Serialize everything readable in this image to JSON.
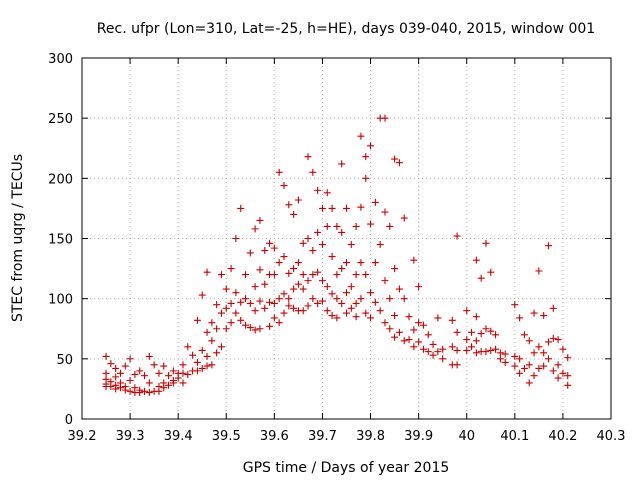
{
  "chart_data": {
    "type": "scatter",
    "title": "Rec. ufpr (Lon=310, Lat=-25, h=HE), days 039-040, 2015, window 001",
    "xlabel": "GPS time / Days of year 2015",
    "ylabel": "STEC from uqrg / TECUs",
    "xlim": [
      39.2,
      40.3
    ],
    "ylim": [
      0,
      300
    ],
    "xticks": [
      39.2,
      39.3,
      39.4,
      39.5,
      39.6,
      39.7,
      39.8,
      39.9,
      40.0,
      40.1,
      40.2,
      40.3
    ],
    "xtick_labels": [
      "39.2",
      "39.3",
      "39.4",
      "39.5",
      "39.6",
      "39.7",
      "39.8",
      "39.9",
      "40",
      "40.1",
      "40.2",
      "40.3"
    ],
    "yticks": [
      0,
      50,
      100,
      150,
      200,
      250,
      300
    ],
    "ytick_labels": [
      "0",
      "50",
      "100",
      "150",
      "200",
      "250",
      "300"
    ],
    "grid": true,
    "marker": "+",
    "color": "#cc0000",
    "series": [
      {
        "name": "STEC",
        "points": [
          [
            39.25,
            52
          ],
          [
            39.25,
            38
          ],
          [
            39.25,
            33
          ],
          [
            39.25,
            29
          ],
          [
            39.25,
            27
          ],
          [
            39.26,
            46
          ],
          [
            39.26,
            31
          ],
          [
            39.26,
            27
          ],
          [
            39.27,
            42
          ],
          [
            39.27,
            35
          ],
          [
            39.27,
            28
          ],
          [
            39.27,
            25
          ],
          [
            39.28,
            38
          ],
          [
            39.28,
            30
          ],
          [
            39.28,
            26
          ],
          [
            39.29,
            44
          ],
          [
            39.29,
            27
          ],
          [
            39.29,
            24
          ],
          [
            39.3,
            50
          ],
          [
            39.3,
            32
          ],
          [
            39.3,
            23
          ],
          [
            39.31,
            37
          ],
          [
            39.31,
            26
          ],
          [
            39.31,
            22
          ],
          [
            39.32,
            40
          ],
          [
            39.32,
            24
          ],
          [
            39.32,
            22
          ],
          [
            39.33,
            36
          ],
          [
            39.33,
            23
          ],
          [
            39.34,
            52
          ],
          [
            39.34,
            30
          ],
          [
            39.34,
            22
          ],
          [
            39.35,
            45
          ],
          [
            39.35,
            23
          ],
          [
            39.36,
            38
          ],
          [
            39.36,
            27
          ],
          [
            39.36,
            23
          ],
          [
            39.37,
            44
          ],
          [
            39.37,
            30
          ],
          [
            39.37,
            26
          ],
          [
            39.38,
            36
          ],
          [
            39.38,
            28
          ],
          [
            39.39,
            40
          ],
          [
            39.39,
            32
          ],
          [
            39.39,
            30
          ],
          [
            39.4,
            38
          ],
          [
            39.4,
            34
          ],
          [
            39.41,
            45
          ],
          [
            39.41,
            38
          ],
          [
            39.41,
            30
          ],
          [
            39.42,
            60
          ],
          [
            39.42,
            37
          ],
          [
            39.43,
            53
          ],
          [
            39.43,
            40
          ],
          [
            39.44,
            82
          ],
          [
            39.44,
            47
          ],
          [
            39.44,
            40
          ],
          [
            39.45,
            103
          ],
          [
            39.45,
            57
          ],
          [
            39.45,
            42
          ],
          [
            39.46,
            122
          ],
          [
            39.46,
            72
          ],
          [
            39.46,
            52
          ],
          [
            39.46,
            44
          ],
          [
            39.47,
            80
          ],
          [
            39.47,
            65
          ],
          [
            39.47,
            45
          ],
          [
            39.48,
            95
          ],
          [
            39.48,
            75
          ],
          [
            39.48,
            55
          ],
          [
            39.49,
            120
          ],
          [
            39.49,
            88
          ],
          [
            39.49,
            60
          ],
          [
            39.5,
            108
          ],
          [
            39.5,
            92
          ],
          [
            39.5,
            75
          ],
          [
            39.51,
            125
          ],
          [
            39.51,
            96
          ],
          [
            39.51,
            80
          ],
          [
            39.52,
            150
          ],
          [
            39.52,
            105
          ],
          [
            39.52,
            88
          ],
          [
            39.53,
            175
          ],
          [
            39.53,
            97
          ],
          [
            39.53,
            82
          ],
          [
            39.54,
            120
          ],
          [
            39.54,
            100
          ],
          [
            39.54,
            78
          ],
          [
            39.55,
            138
          ],
          [
            39.55,
            96
          ],
          [
            39.55,
            76
          ],
          [
            39.56,
            158
          ],
          [
            39.56,
            110
          ],
          [
            39.56,
            90
          ],
          [
            39.56,
            74
          ],
          [
            39.57,
            165
          ],
          [
            39.57,
            124
          ],
          [
            39.57,
            98
          ],
          [
            39.57,
            75
          ],
          [
            39.58,
            140
          ],
          [
            39.58,
            112
          ],
          [
            39.58,
            92
          ],
          [
            39.59,
            146
          ],
          [
            39.59,
            120
          ],
          [
            39.59,
            97
          ],
          [
            39.59,
            77
          ],
          [
            39.6,
            142
          ],
          [
            39.6,
            120
          ],
          [
            39.6,
            96
          ],
          [
            39.6,
            84
          ],
          [
            39.61,
            205
          ],
          [
            39.61,
            130
          ],
          [
            39.61,
            100
          ],
          [
            39.61,
            80
          ],
          [
            39.62,
            194
          ],
          [
            39.62,
            135
          ],
          [
            39.62,
            104
          ],
          [
            39.62,
            88
          ],
          [
            39.63,
            178
          ],
          [
            39.63,
            121
          ],
          [
            39.63,
            100
          ],
          [
            39.63,
            94
          ],
          [
            39.64,
            170
          ],
          [
            39.64,
            125
          ],
          [
            39.64,
            108
          ],
          [
            39.64,
            92
          ],
          [
            39.65,
            182
          ],
          [
            39.65,
            130
          ],
          [
            39.65,
            112
          ],
          [
            39.65,
            90
          ],
          [
            39.66,
            146
          ],
          [
            39.66,
            120
          ],
          [
            39.66,
            108
          ],
          [
            39.66,
            90
          ],
          [
            39.67,
            218
          ],
          [
            39.67,
            150
          ],
          [
            39.67,
            115
          ],
          [
            39.67,
            94
          ],
          [
            39.68,
            205
          ],
          [
            39.68,
            140
          ],
          [
            39.68,
            120
          ],
          [
            39.68,
            100
          ],
          [
            39.69,
            190
          ],
          [
            39.69,
            155
          ],
          [
            39.69,
            122
          ],
          [
            39.69,
            96
          ],
          [
            39.7,
            175
          ],
          [
            39.7,
            145
          ],
          [
            39.7,
            115
          ],
          [
            39.7,
            98
          ],
          [
            39.71,
            188
          ],
          [
            39.71,
            160
          ],
          [
            39.71,
            110
          ],
          [
            39.71,
            90
          ],
          [
            39.72,
            175
          ],
          [
            39.72,
            135
          ],
          [
            39.72,
            104
          ],
          [
            39.72,
            86
          ],
          [
            39.73,
            160
          ],
          [
            39.73,
            120
          ],
          [
            39.73,
            100
          ],
          [
            39.73,
            84
          ],
          [
            39.74,
            212
          ],
          [
            39.74,
            155
          ],
          [
            39.74,
            125
          ],
          [
            39.74,
            96
          ],
          [
            39.75,
            175
          ],
          [
            39.75,
            130
          ],
          [
            39.75,
            105
          ],
          [
            39.75,
            88
          ],
          [
            39.76,
            145
          ],
          [
            39.76,
            110
          ],
          [
            39.76,
            92
          ],
          [
            39.77,
            160
          ],
          [
            39.77,
            120
          ],
          [
            39.77,
            96
          ],
          [
            39.77,
            85
          ],
          [
            39.78,
            235
          ],
          [
            39.78,
            176
          ],
          [
            39.78,
            130
          ],
          [
            39.78,
            100
          ],
          [
            39.79,
            218
          ],
          [
            39.79,
            200
          ],
          [
            39.79,
            120
          ],
          [
            39.79,
            88
          ],
          [
            39.8,
            227
          ],
          [
            39.8,
            162
          ],
          [
            39.8,
            105
          ],
          [
            39.8,
            84
          ],
          [
            39.81,
            180
          ],
          [
            39.81,
            130
          ],
          [
            39.81,
            97
          ],
          [
            39.82,
            250
          ],
          [
            39.82,
            145
          ],
          [
            39.82,
            90
          ],
          [
            39.83,
            250
          ],
          [
            39.83,
            172
          ],
          [
            39.83,
            115
          ],
          [
            39.83,
            80
          ],
          [
            39.84,
            160
          ],
          [
            39.84,
            100
          ],
          [
            39.84,
            75
          ],
          [
            39.85,
            216
          ],
          [
            39.85,
            125
          ],
          [
            39.85,
            86
          ],
          [
            39.85,
            68
          ],
          [
            39.86,
            213
          ],
          [
            39.86,
            108
          ],
          [
            39.86,
            72
          ],
          [
            39.87,
            167
          ],
          [
            39.87,
            100
          ],
          [
            39.87,
            65
          ],
          [
            39.88,
            85
          ],
          [
            39.88,
            66
          ],
          [
            39.89,
            132
          ],
          [
            39.89,
            74
          ],
          [
            39.89,
            60
          ],
          [
            39.9,
            110
          ],
          [
            39.9,
            80
          ],
          [
            39.9,
            64
          ],
          [
            39.91,
            78
          ],
          [
            39.91,
            58
          ],
          [
            39.92,
            70
          ],
          [
            39.92,
            56
          ],
          [
            39.93,
            62
          ],
          [
            39.93,
            53
          ],
          [
            39.94,
            84
          ],
          [
            39.94,
            56
          ],
          [
            39.95,
            58
          ],
          [
            39.95,
            50
          ],
          [
            39.97,
            82
          ],
          [
            39.97,
            60
          ],
          [
            39.97,
            45
          ],
          [
            39.98,
            152
          ],
          [
            39.98,
            72
          ],
          [
            39.98,
            57
          ],
          [
            39.98,
            45
          ],
          [
            40.0,
            90
          ],
          [
            40.0,
            66
          ],
          [
            40.0,
            57
          ],
          [
            40.01,
            72
          ],
          [
            40.01,
            60
          ],
          [
            40.02,
            132
          ],
          [
            40.02,
            85
          ],
          [
            40.02,
            65
          ],
          [
            40.02,
            55
          ],
          [
            40.03,
            117
          ],
          [
            40.03,
            71
          ],
          [
            40.03,
            56
          ],
          [
            40.04,
            146
          ],
          [
            40.04,
            75
          ],
          [
            40.04,
            56
          ],
          [
            40.05,
            122
          ],
          [
            40.05,
            73
          ],
          [
            40.05,
            57
          ],
          [
            40.06,
            70
          ],
          [
            40.06,
            58
          ],
          [
            40.07,
            55
          ],
          [
            40.07,
            50
          ],
          [
            40.08,
            54
          ],
          [
            40.08,
            47
          ],
          [
            40.1,
            95
          ],
          [
            40.1,
            52
          ],
          [
            40.1,
            44
          ],
          [
            40.11,
            84
          ],
          [
            40.11,
            50
          ],
          [
            40.11,
            38
          ],
          [
            40.12,
            70
          ],
          [
            40.12,
            42
          ],
          [
            40.13,
            65
          ],
          [
            40.13,
            45
          ],
          [
            40.13,
            30
          ],
          [
            40.14,
            88
          ],
          [
            40.14,
            55
          ],
          [
            40.14,
            36
          ],
          [
            40.15,
            123
          ],
          [
            40.15,
            60
          ],
          [
            40.15,
            42
          ],
          [
            40.16,
            86
          ],
          [
            40.16,
            55
          ],
          [
            40.16,
            44
          ],
          [
            40.17,
            144
          ],
          [
            40.17,
            64
          ],
          [
            40.17,
            50
          ],
          [
            40.18,
            92
          ],
          [
            40.18,
            67
          ],
          [
            40.18,
            40
          ],
          [
            40.19,
            66
          ],
          [
            40.19,
            45
          ],
          [
            40.19,
            34
          ],
          [
            40.2,
            58
          ],
          [
            40.2,
            38
          ],
          [
            40.21,
            51
          ],
          [
            40.21,
            36
          ],
          [
            40.21,
            28
          ]
        ]
      }
    ]
  }
}
